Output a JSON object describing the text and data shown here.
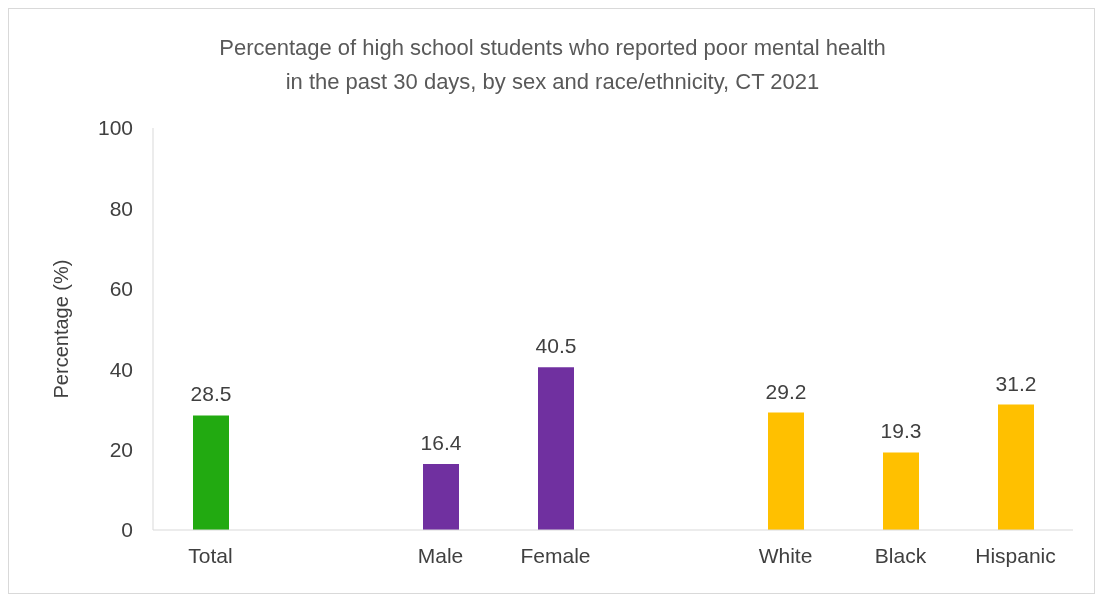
{
  "chart_data": {
    "type": "bar",
    "title": "Percentage of high school students who reported poor mental health\nin the past 30 days, by sex and race/ethnicity, CT 2021",
    "ylabel": "Percentage (%)",
    "categories": [
      "Total",
      null,
      "Male",
      "Female",
      null,
      "White",
      "Black",
      "Hispanic"
    ],
    "values": [
      28.5,
      null,
      16.4,
      40.5,
      null,
      29.2,
      19.3,
      31.2
    ],
    "colors": [
      "#22aa11",
      "#22aa11",
      "#7030a0",
      "#7030a0",
      "#ffc000",
      "#ffc000",
      "#ffc000",
      "#ffc000"
    ],
    "ylim": [
      0,
      100
    ],
    "yticks": [
      0,
      20,
      40,
      60,
      80,
      100
    ],
    "grid": false,
    "legend": false,
    "data_labels": true
  }
}
